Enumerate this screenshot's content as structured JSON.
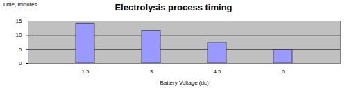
{
  "chart_data": {
    "type": "bar",
    "title": "Electrolysis process timing",
    "x_label": "Battery Voltage (dc)",
    "y_label": "Time, minutes",
    "categories": [
      "1.5",
      "3",
      "4.5",
      "6"
    ],
    "values": [
      14.2,
      11.5,
      7.4,
      4.8
    ],
    "color": "#9999ff",
    "ylim": [
      0,
      15
    ],
    "yticks": [
      0,
      5,
      10,
      15
    ],
    "grid": true
  }
}
